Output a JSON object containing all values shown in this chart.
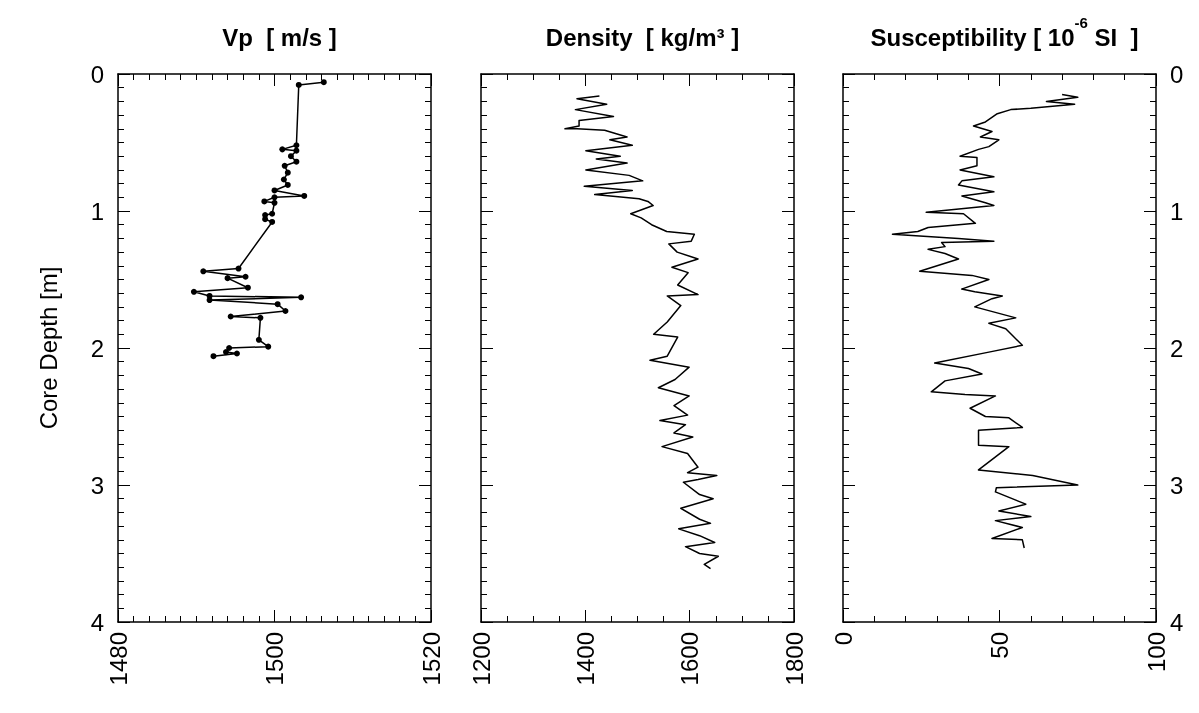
{
  "chart_data": [
    {
      "type": "line",
      "title": "Vp  [ m/s ]",
      "ylabel": "Core Depth [m]",
      "color": "#000000",
      "marker": "circle",
      "x": [
        1506.3,
        1503.1,
        1502.8,
        1501.0,
        1502.8,
        1502.1,
        1502.8,
        1501.3,
        1501.7,
        1501.2,
        1501.7,
        1500.0,
        1503.8,
        1500.0,
        1498.7,
        1500.0,
        1499.7,
        1498.8,
        1498.8,
        1499.7,
        1495.4,
        1490.9,
        1496.3,
        1494.0,
        1496.6,
        1489.7,
        1491.7,
        1503.4,
        1491.7,
        1500.4,
        1501.4,
        1494.4,
        1498.2,
        1498.0,
        1499.2,
        1494.2,
        1493.8,
        1495.2,
        1492.2
      ],
      "values": [
        0.06,
        0.08,
        0.52,
        0.55,
        0.56,
        0.6,
        0.64,
        0.67,
        0.72,
        0.77,
        0.81,
        0.85,
        0.89,
        0.9,
        0.93,
        0.94,
        1.02,
        1.03,
        1.06,
        1.08,
        1.42,
        1.44,
        1.48,
        1.49,
        1.56,
        1.59,
        1.62,
        1.63,
        1.65,
        1.68,
        1.73,
        1.77,
        1.78,
        1.94,
        1.99,
        2.0,
        2.03,
        2.04,
        2.06
      ],
      "xlim": [
        1480,
        1520
      ],
      "xticks": [
        1480,
        1500,
        1520
      ],
      "ylim": [
        4,
        0
      ],
      "yticks": [
        0,
        1,
        2,
        3,
        4
      ]
    },
    {
      "type": "line",
      "title": "Density  [ kg/m³ ]",
      "color": "#000000",
      "marker": "none",
      "x": [
        1427,
        1384,
        1441,
        1381,
        1454,
        1388,
        1388,
        1361,
        1384,
        1437,
        1480,
        1447,
        1490,
        1401,
        1467,
        1421,
        1480,
        1401,
        1484,
        1510,
        1398,
        1490,
        1418,
        1503,
        1520,
        1530,
        1487,
        1507,
        1527,
        1556,
        1609,
        1603,
        1560,
        1576,
        1616,
        1566,
        1597,
        1577,
        1616,
        1557,
        1583,
        1557,
        1531,
        1577,
        1557,
        1524,
        1599,
        1572,
        1540,
        1599,
        1570,
        1596,
        1543,
        1592,
        1570,
        1606,
        1547,
        1596,
        1616,
        1596,
        1652,
        1616,
        1588,
        1619,
        1645,
        1583,
        1619,
        1640,
        1579,
        1619,
        1648,
        1592,
        1619,
        1655,
        1628,
        1640
      ],
      "values": [
        0.16,
        0.18,
        0.22,
        0.26,
        0.31,
        0.34,
        0.38,
        0.4,
        0.4,
        0.41,
        0.46,
        0.48,
        0.52,
        0.56,
        0.6,
        0.62,
        0.65,
        0.7,
        0.74,
        0.78,
        0.82,
        0.85,
        0.88,
        0.91,
        0.93,
        0.96,
        1.02,
        1.05,
        1.1,
        1.15,
        1.17,
        1.22,
        1.24,
        1.3,
        1.35,
        1.41,
        1.45,
        1.54,
        1.61,
        1.62,
        1.69,
        1.81,
        1.9,
        1.92,
        2.06,
        2.09,
        2.14,
        2.23,
        2.29,
        2.35,
        2.42,
        2.49,
        2.53,
        2.56,
        2.62,
        2.65,
        2.72,
        2.77,
        2.87,
        2.91,
        2.93,
        2.96,
        2.98,
        3.07,
        3.1,
        3.17,
        3.25,
        3.28,
        3.32,
        3.37,
        3.42,
        3.45,
        3.5,
        3.52,
        3.58,
        3.61
      ],
      "xlim": [
        1200,
        1800
      ],
      "xticks": [
        1200,
        1400,
        1600,
        1800
      ],
      "ylim": [
        4,
        0
      ],
      "yticks": [
        0,
        1,
        2,
        3,
        4
      ],
      "tick_labels": "x"
    },
    {
      "type": "line",
      "title": "Susceptibility [ 10$^{-6}$ SI  ]",
      "color": "#000000",
      "marker": "none",
      "x": [
        70,
        75,
        65,
        74,
        60,
        53.6,
        49.3,
        45.5,
        41.7,
        47.6,
        43.9,
        49.8,
        46.6,
        43.3,
        37.4,
        42.8,
        42.8,
        37.4,
        48.2,
        38,
        36.9,
        48.2,
        38,
        45.5,
        48.2,
        26.6,
        38.5,
        42.3,
        27.2,
        23.9,
        15.8,
        36.9,
        48.2,
        31.5,
        32.6,
        27.2,
        32.6,
        36.9,
        24.5,
        41.2,
        46.6,
        37.9,
        42.1,
        50.9,
        47.6,
        42.1,
        55.2,
        46.6,
        52,
        57.3,
        46.6,
        29.3,
        40.1,
        44.4,
        32.6,
        28.2,
        39,
        48.7,
        40.6,
        45.5,
        53,
        57.3,
        43.3,
        43.3,
        53,
        43.3,
        60.6,
        75,
        49,
        48.7,
        58.4,
        49.8,
        60,
        48.7,
        57.3,
        47.6,
        57.3,
        57.9
      ],
      "values": [
        0.15,
        0.17,
        0.2,
        0.22,
        0.25,
        0.26,
        0.29,
        0.35,
        0.38,
        0.42,
        0.46,
        0.48,
        0.53,
        0.55,
        0.6,
        0.61,
        0.67,
        0.7,
        0.75,
        0.78,
        0.81,
        0.86,
        0.89,
        0.94,
        0.96,
        1.01,
        1.02,
        1.09,
        1.12,
        1.15,
        1.17,
        1.2,
        1.22,
        1.23,
        1.26,
        1.28,
        1.31,
        1.35,
        1.44,
        1.47,
        1.5,
        1.57,
        1.59,
        1.62,
        1.64,
        1.7,
        1.78,
        1.82,
        1.86,
        1.98,
        2.03,
        2.11,
        2.15,
        2.19,
        2.24,
        2.32,
        2.34,
        2.35,
        2.44,
        2.5,
        2.51,
        2.58,
        2.6,
        2.71,
        2.72,
        2.89,
        2.93,
        3.0,
        3.02,
        3.05,
        3.14,
        3.19,
        3.23,
        3.26,
        3.31,
        3.39,
        3.4,
        3.46
      ],
      "xlim": [
        0,
        100
      ],
      "xticks": [
        0,
        50,
        100
      ],
      "ylim": [
        4,
        0
      ],
      "yticks": [
        0,
        1,
        2,
        3,
        4
      ]
    }
  ]
}
